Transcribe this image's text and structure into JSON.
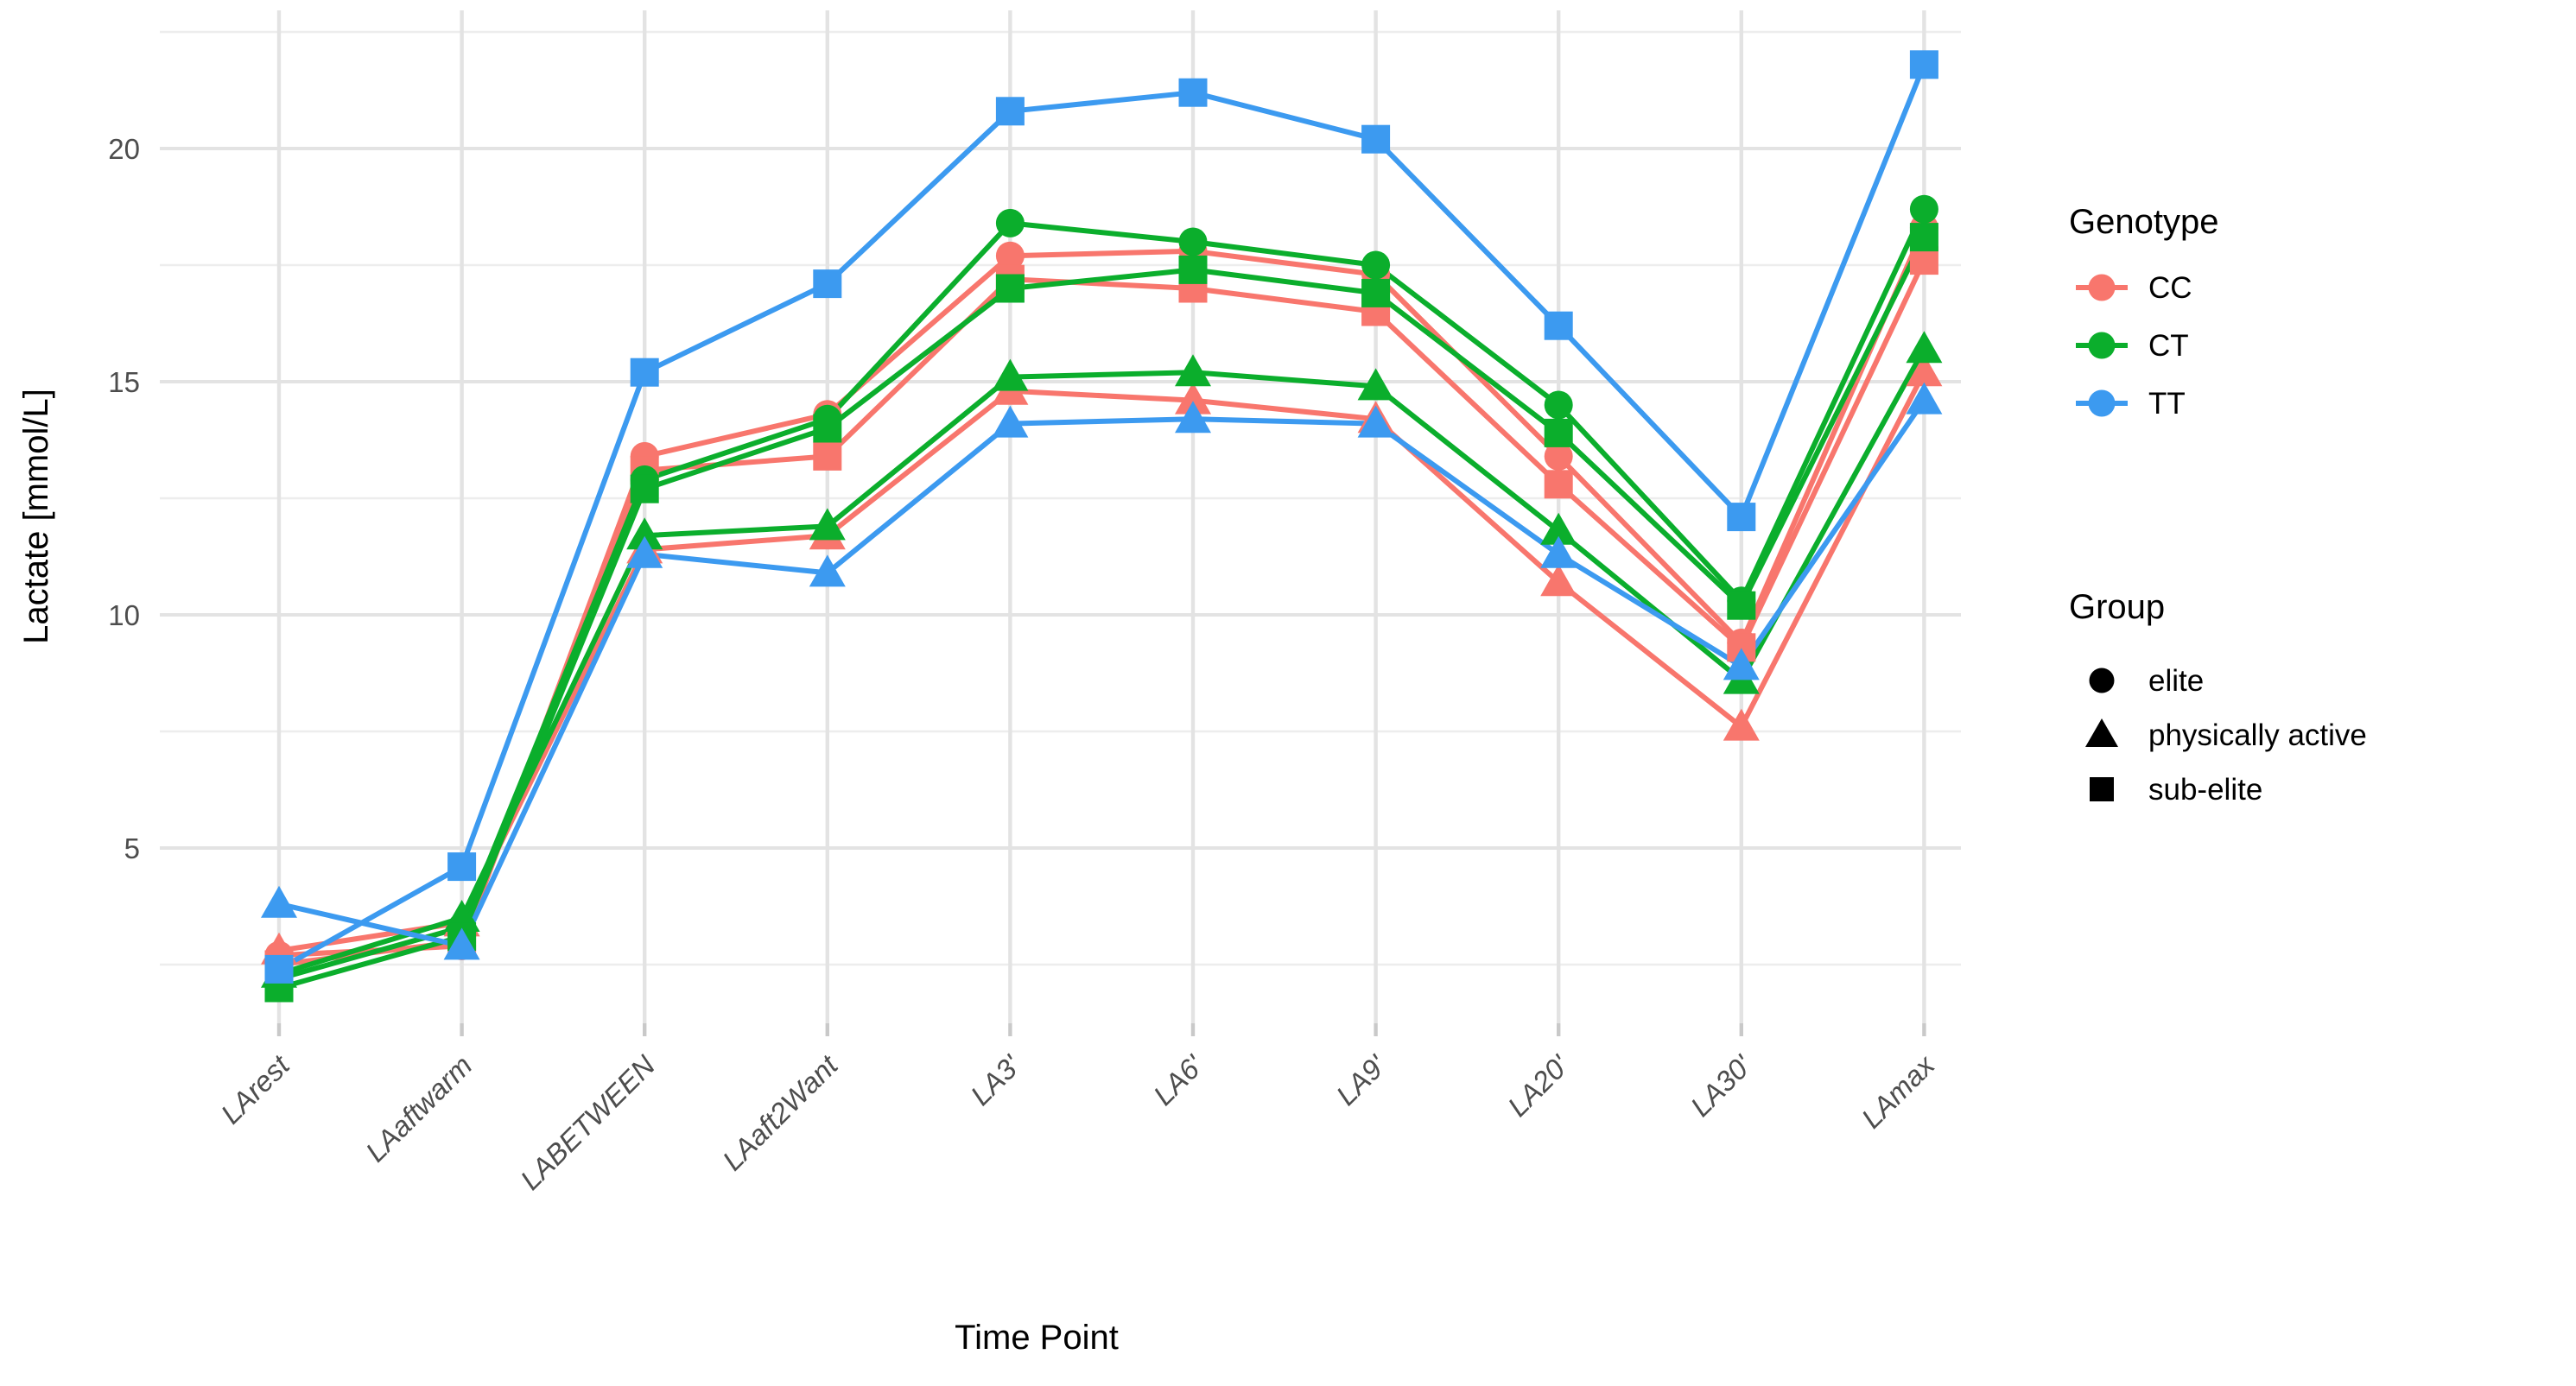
{
  "chart_data": {
    "type": "line",
    "title": "",
    "xlabel": "Time Point",
    "ylabel": "Lactate [mmol/L]",
    "categories": [
      "LArest",
      "LAaftwarm",
      "LABETWEEN",
      "LAaft2Want",
      "LA3'",
      "LA6'",
      "LA9'",
      "LA20'",
      "LA30'",
      "LAmax"
    ],
    "y_ticks": [
      5,
      10,
      15,
      20
    ],
    "y_minor_ticks": [
      2.5,
      7.5,
      12.5,
      17.5,
      22.5
    ],
    "ylim": [
      1.3,
      22.8
    ],
    "grid": true,
    "legend_position": "right",
    "genotype_colors": {
      "CC": "#F8766D",
      "CT": "#0BAE2C",
      "TT": "#3C9AF0"
    },
    "series": [
      {
        "name": "CC elite",
        "genotype": "CC",
        "group": "elite",
        "marker": "circle",
        "values": [
          2.7,
          2.9,
          13.4,
          14.3,
          17.7,
          17.8,
          17.3,
          13.4,
          9.4,
          18.3
        ]
      },
      {
        "name": "CC physically active",
        "genotype": "CC",
        "group": "physically active",
        "marker": "triangle",
        "values": [
          2.8,
          3.4,
          11.4,
          11.7,
          14.8,
          14.6,
          14.2,
          10.7,
          7.6,
          15.2
        ]
      },
      {
        "name": "CC sub-elite",
        "genotype": "CC",
        "group": "sub-elite",
        "marker": "square",
        "values": [
          2.5,
          3.0,
          13.1,
          13.4,
          17.2,
          17.0,
          16.5,
          12.8,
          9.3,
          17.6
        ]
      },
      {
        "name": "CT elite",
        "genotype": "CT",
        "group": "elite",
        "marker": "circle",
        "values": [
          2.2,
          3.3,
          12.9,
          14.2,
          18.4,
          18.0,
          17.5,
          14.5,
          10.3,
          18.7
        ]
      },
      {
        "name": "CT physically active",
        "genotype": "CT",
        "group": "physically active",
        "marker": "triangle",
        "values": [
          2.3,
          3.5,
          11.7,
          11.9,
          15.1,
          15.2,
          14.9,
          11.8,
          8.6,
          15.7
        ]
      },
      {
        "name": "CT sub-elite",
        "genotype": "CT",
        "group": "sub-elite",
        "marker": "square",
        "values": [
          2.0,
          3.1,
          12.7,
          14.0,
          17.0,
          17.4,
          16.9,
          13.9,
          10.2,
          18.1
        ]
      },
      {
        "name": "TT physically active",
        "genotype": "TT",
        "group": "physically active",
        "marker": "triangle",
        "values": [
          3.8,
          2.9,
          11.3,
          10.9,
          14.1,
          14.2,
          14.1,
          11.3,
          8.9,
          14.6
        ]
      },
      {
        "name": "TT sub-elite",
        "genotype": "TT",
        "group": "sub-elite",
        "marker": "square",
        "values": [
          2.4,
          4.6,
          15.2,
          17.1,
          20.8,
          21.2,
          20.2,
          16.2,
          12.1,
          21.8
        ]
      }
    ],
    "legend": {
      "genotype_title": "Genotype",
      "genotype_entries": [
        {
          "label": "CC",
          "color": "#F8766D"
        },
        {
          "label": "CT",
          "color": "#0BAE2C"
        },
        {
          "label": "TT",
          "color": "#3C9AF0"
        }
      ],
      "group_title": "Group",
      "group_entries": [
        {
          "label": "elite",
          "marker": "circle"
        },
        {
          "label": "physically active",
          "marker": "triangle"
        },
        {
          "label": "sub-elite",
          "marker": "square"
        }
      ]
    }
  },
  "styles": {
    "background": "#ffffff",
    "grid_major_color": "#e3e3e3",
    "grid_minor_color": "#ededed",
    "tick_mark_color": "#c9c9c9",
    "tick_text_color": "#4d4d4d",
    "axis_title_color": "#000000"
  }
}
